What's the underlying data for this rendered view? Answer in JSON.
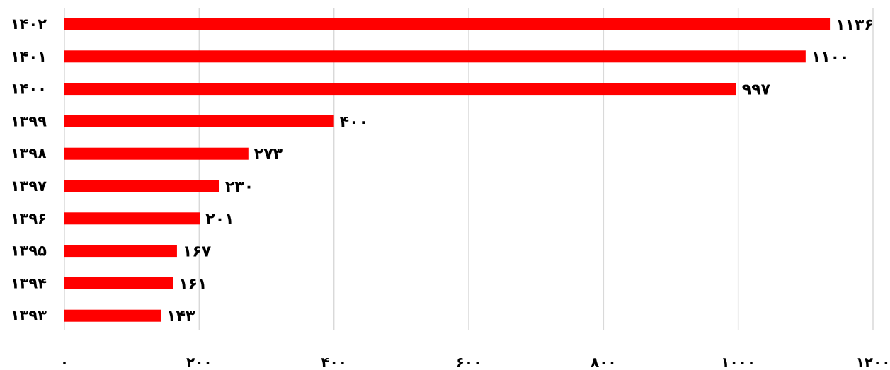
{
  "chart_data": {
    "type": "bar",
    "orientation": "horizontal",
    "categories": [
      "۱۴۰۲",
      "۱۴۰۱",
      "۱۴۰۰",
      "۱۳۹۹",
      "۱۳۹۸",
      "۱۳۹۷",
      "۱۳۹۶",
      "۱۳۹۵",
      "۱۳۹۴",
      "۱۳۹۳"
    ],
    "values": [
      1136,
      1100,
      997,
      400,
      273,
      230,
      201,
      167,
      161,
      143
    ],
    "data_labels": [
      "۱۱۳۶",
      "۱۱۰۰",
      "۹۹۷",
      "۴۰۰",
      "۲۷۳",
      "۲۳۰",
      "۲۰۱",
      "۱۶۷",
      "۱۶۱",
      "۱۴۳"
    ],
    "x_ticks": [
      0,
      200,
      400,
      600,
      800,
      1000,
      1200
    ],
    "x_tick_labels": [
      "۰",
      "۲۰۰",
      "۴۰۰",
      "۶۰۰",
      "۸۰۰",
      "۱۰۰۰",
      "۱۲۰۰"
    ],
    "xlim": [
      0,
      1200
    ],
    "grid": "vertical",
    "legend": "none",
    "bar_color": "#ff0000",
    "grid_color": "#d9d9d9",
    "title": "",
    "xlabel": "",
    "ylabel": ""
  }
}
